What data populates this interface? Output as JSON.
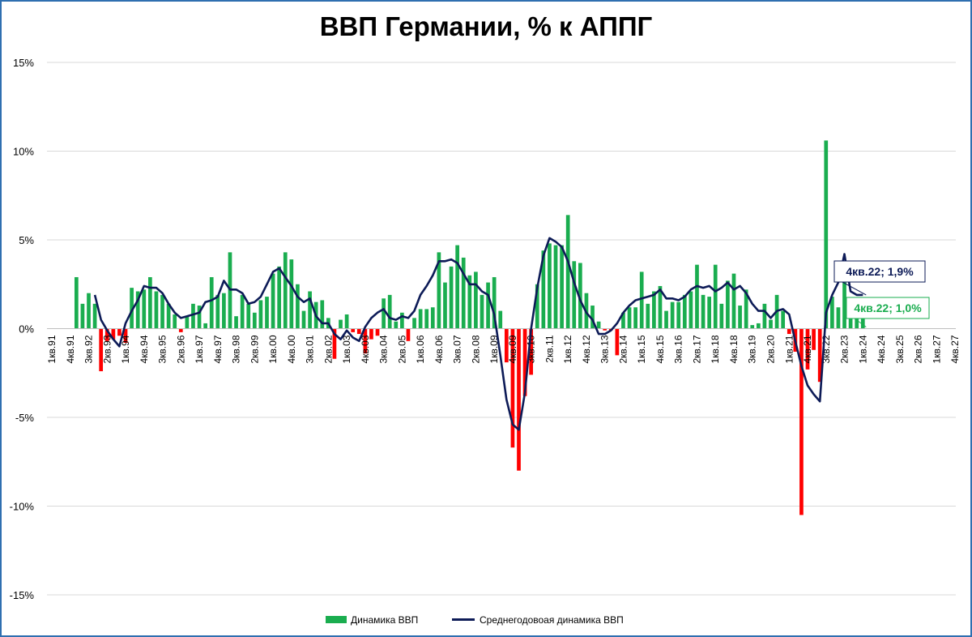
{
  "chart_data": {
    "type": "bar",
    "title": "ВВП Германии, % к АППГ",
    "xlabel": "",
    "ylabel": "",
    "ylim": [
      -15,
      15
    ],
    "y_ticks": [
      "15%",
      "10%",
      "5%",
      "0%",
      "-5%",
      "-10%",
      "-15%"
    ],
    "y_tick_values": [
      15,
      10,
      5,
      0,
      -5,
      -10,
      -15
    ],
    "x_ticks": [
      "1кв.91",
      "4кв.91",
      "3кв.92",
      "2кв.93",
      "1кв.94",
      "4кв.94",
      "3кв.95",
      "2кв.96",
      "1кв.97",
      "4кв.97",
      "3кв.98",
      "2кв.99",
      "1кв.00",
      "4кв.00",
      "3кв.01",
      "2кв.02",
      "1кв.03",
      "4кв.03",
      "3кв.04",
      "2кв.05",
      "1кв.06",
      "4кв.06",
      "3кв.07",
      "2кв.08",
      "1кв.09",
      "4кв.09",
      "3кв.10",
      "2кв.11",
      "1кв.12",
      "4кв.12",
      "3кв.13",
      "2кв.14",
      "1кв.15",
      "4кв.15",
      "3кв.16",
      "2кв.17",
      "1кв.18",
      "4кв.18",
      "3кв.19",
      "2кв.20",
      "1кв.21",
      "4кв.21",
      "3кв.22",
      "2кв.23",
      "1кв.24",
      "4кв.24",
      "3кв.25",
      "2кв.26",
      "1кв.27",
      "4кв.27"
    ],
    "grid": true,
    "legend_position": "bottom",
    "series": [
      {
        "name": "Динамика ВВП",
        "type": "bar",
        "color_positive": "#1aad4f",
        "color_negative": "#ff0000",
        "values": [
          null,
          null,
          null,
          null,
          2.9,
          1.4,
          2.0,
          1.4,
          -2.4,
          -0.7,
          -0.6,
          -0.4,
          -0.8,
          2.3,
          2.1,
          2.2,
          2.9,
          2.1,
          1.9,
          1.4,
          0.8,
          -0.2,
          0.7,
          1.4,
          1.3,
          0.3,
          2.9,
          1.9,
          2.0,
          4.3,
          0.7,
          1.9,
          1.4,
          0.9,
          1.6,
          1.8,
          3.1,
          3.5,
          4.3,
          3.9,
          2.5,
          1.0,
          2.1,
          1.5,
          1.6,
          0.6,
          -1.7,
          0.5,
          0.8,
          -0.2,
          -0.3,
          -1.4,
          -0.6,
          -0.4,
          1.7,
          1.9,
          0.4,
          0.9,
          -0.7,
          0.6,
          1.1,
          1.1,
          1.2,
          4.3,
          2.6,
          3.5,
          4.7,
          4.0,
          3.0,
          3.2,
          1.9,
          2.6,
          2.9,
          1.0,
          -1.9,
          -6.7,
          -8.0,
          -3.8,
          -2.6,
          2.5,
          4.4,
          4.8,
          4.7,
          4.7,
          6.4,
          3.8,
          3.7,
          2.0,
          1.3,
          0.4,
          -0.1,
          -0.1,
          -1.5,
          0.9,
          1.2,
          1.2,
          3.2,
          1.4,
          2.1,
          2.4,
          1.0,
          1.5,
          1.5,
          1.9,
          2.1,
          3.6,
          1.9,
          1.8,
          3.6,
          1.4,
          2.7,
          3.1,
          1.3,
          2.2,
          0.2,
          0.3,
          1.4,
          0.5,
          1.9,
          1.0,
          -0.3,
          -1.3,
          -10.5,
          -2.3,
          -1.2,
          -3.0,
          10.6,
          1.8,
          1.2,
          3.7,
          1.7,
          1.2,
          1.0
        ]
      },
      {
        "name": "Среднегодовоая динамика ВВП",
        "type": "line",
        "color": "#0d1b57",
        "values": [
          null,
          null,
          null,
          null,
          null,
          null,
          null,
          1.9,
          0.5,
          -0.1,
          -0.6,
          -1.0,
          0.3,
          1.0,
          1.6,
          2.4,
          2.3,
          2.3,
          2.0,
          1.4,
          0.9,
          0.6,
          0.7,
          0.8,
          0.9,
          1.5,
          1.6,
          1.8,
          2.7,
          2.2,
          2.2,
          2.0,
          1.4,
          1.5,
          1.8,
          2.5,
          3.2,
          3.4,
          2.9,
          2.4,
          1.8,
          1.5,
          1.7,
          0.7,
          0.3,
          0.3,
          -0.3,
          -0.6,
          -0.1,
          -0.5,
          -0.7,
          0.1,
          0.6,
          0.9,
          1.1,
          0.6,
          0.5,
          0.7,
          0.6,
          1.0,
          1.9,
          2.4,
          3.0,
          3.8,
          3.8,
          3.9,
          3.7,
          3.1,
          2.5,
          2.5,
          2.1,
          1.9,
          0.8,
          -1.5,
          -4.0,
          -5.4,
          -5.7,
          -3.6,
          0.0,
          2.3,
          4.1,
          5.1,
          4.9,
          4.6,
          3.8,
          2.6,
          1.6,
          0.9,
          0.5,
          -0.3,
          -0.3,
          -0.1,
          0.3,
          0.9,
          1.3,
          1.6,
          1.7,
          1.8,
          1.9,
          2.2,
          1.7,
          1.7,
          1.6,
          1.8,
          2.2,
          2.4,
          2.3,
          2.4,
          2.1,
          2.3,
          2.6,
          2.2,
          2.4,
          2.0,
          1.4,
          1.0,
          1.0,
          0.6,
          1.0,
          1.1,
          0.8,
          -0.7,
          -2.1,
          -3.2,
          -3.7,
          -4.1,
          0.9,
          1.9,
          2.6,
          4.2,
          2.1,
          1.9,
          1.9
        ]
      }
    ],
    "annotations": [
      {
        "text": "4кв.22; 1,9%",
        "series": "Среднегодовоая динамика ВВП",
        "color": "#0d1b57"
      },
      {
        "text": "4кв.22; 1,0%",
        "series": "Динамика ВВП",
        "color": "#1aad4f"
      }
    ]
  }
}
